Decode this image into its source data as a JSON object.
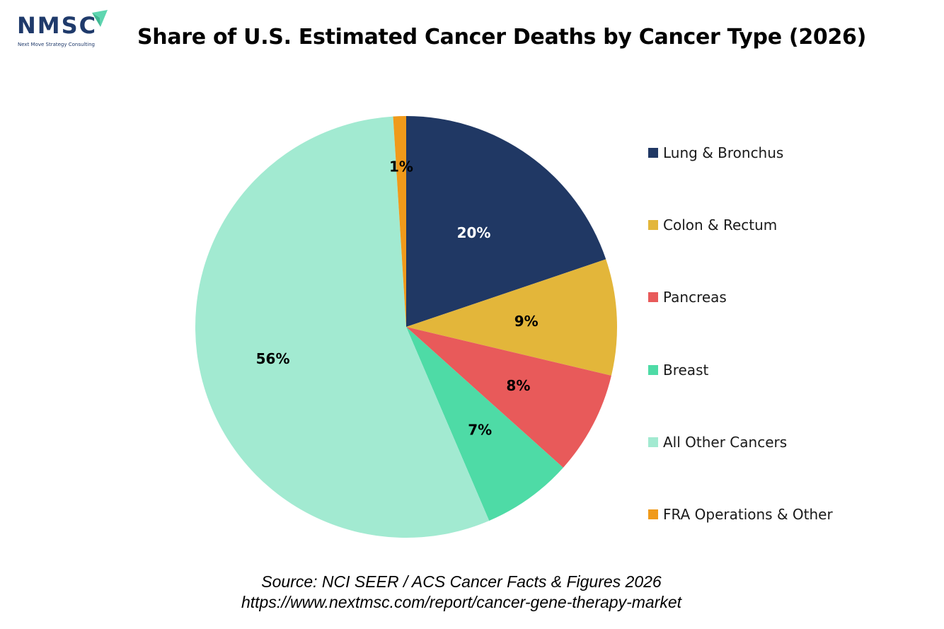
{
  "logo": {
    "text": "NMSC",
    "tagline": "Next Move Strategy Consulting",
    "text_color": "#1f3a6b",
    "arrow_color": "#5ed6b0"
  },
  "chart_data": {
    "type": "pie",
    "title": "Share of U.S. Estimated Cancer Deaths by Cancer Type (2026)",
    "legend_position": "right",
    "slices": [
      {
        "name": "Lung & Bronchus",
        "value": 20,
        "label": "20%",
        "color": "#203864",
        "label_color": "#ffffff"
      },
      {
        "name": "Colon & Rectum",
        "value": 9,
        "label": "9%",
        "color": "#e3b63a",
        "label_color": "#000000"
      },
      {
        "name": "Pancreas",
        "value": 8,
        "label": "8%",
        "color": "#e85a5a",
        "label_color": "#000000"
      },
      {
        "name": "Breast",
        "value": 7,
        "label": "7%",
        "color": "#4edba6",
        "label_color": "#000000"
      },
      {
        "name": "All Other Cancers",
        "value": 56,
        "label": "56%",
        "color": "#a2ead1",
        "label_color": "#000000"
      },
      {
        "name": "FRA Operations & Other",
        "value": 1,
        "label": "1%",
        "color": "#f09a1a",
        "label_color": "#000000"
      }
    ]
  },
  "source": {
    "line1": "Source: NCI SEER / ACS Cancer Facts & Figures 2026",
    "line2": "https://www.nextmsc.com/report/cancer-gene-therapy-market"
  }
}
